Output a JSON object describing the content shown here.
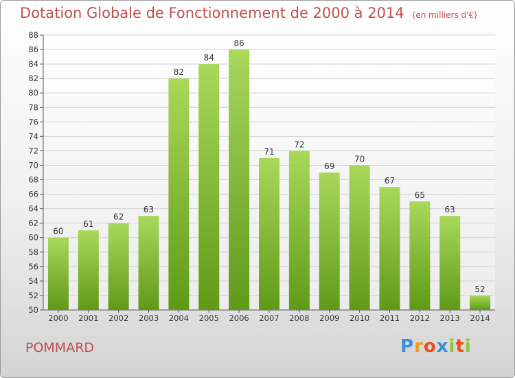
{
  "title": "Dotation Globale de Fonctionnement de 2000 à 2014",
  "unit_note": "(en milliers d'€)",
  "commune": "POMMARD",
  "logo": {
    "letters": [
      "P",
      "r",
      "o",
      "x",
      "i",
      "t",
      "i"
    ],
    "colors": [
      "#3b8ede",
      "#f39c1f",
      "#e8501e",
      "#3b8ede",
      "#8cc63f",
      "#e8501e",
      "#8cc63f"
    ]
  },
  "colors": {
    "bar_light": "#a9d85a",
    "bar_dark": "#5f9a17",
    "title": "#c0504d"
  },
  "chart_data": {
    "type": "bar",
    "title": "Dotation Globale de Fonctionnement de 2000 à 2014",
    "categories": [
      "2000",
      "2001",
      "2002",
      "2003",
      "2004",
      "2005",
      "2006",
      "2007",
      "2008",
      "2009",
      "2010",
      "2011",
      "2012",
      "2013",
      "2014"
    ],
    "values": [
      60,
      61,
      62,
      63,
      82,
      84,
      86,
      71,
      72,
      69,
      70,
      67,
      65,
      63,
      52
    ],
    "ylim": [
      50,
      88
    ],
    "yticks": [
      50,
      52,
      54,
      56,
      58,
      60,
      62,
      64,
      66,
      68,
      70,
      72,
      74,
      76,
      78,
      80,
      82,
      84,
      86,
      88
    ],
    "grid": true
  }
}
